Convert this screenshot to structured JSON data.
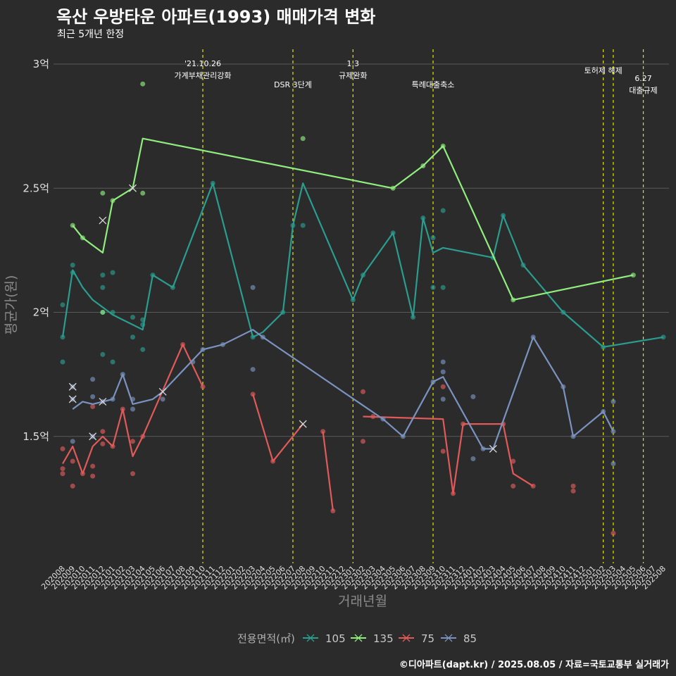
{
  "title": "옥산 우방타운 아파트(1993) 매매가격 변화",
  "subtitle": "최근 5개년 한정",
  "caption": "©디아파트(dapt.kr) / 2025.08.05 / 자료=국토교통부 실거래가",
  "chart_data": {
    "type": "line",
    "xlabel": "거래년월",
    "ylabel": "평균가(원)",
    "ylim": [
      1.0,
      3.05
    ],
    "yticks": [
      {
        "value": 1.5,
        "label": "1.5억"
      },
      {
        "value": 2.0,
        "label": "2억"
      },
      {
        "value": 2.5,
        "label": "2.5억"
      },
      {
        "value": 3.0,
        "label": "3억"
      }
    ],
    "categories": [
      "202008",
      "202009",
      "202010",
      "202011",
      "202012",
      "202101",
      "202102",
      "202103",
      "202104",
      "202105",
      "202106",
      "202107",
      "202108",
      "202109",
      "202110",
      "202111",
      "202112",
      "202201",
      "202202",
      "202203",
      "202204",
      "202205",
      "202206",
      "202207",
      "202208",
      "202209",
      "202210",
      "202211",
      "202212",
      "202301",
      "202302",
      "202303",
      "202304",
      "202305",
      "202306",
      "202307",
      "202308",
      "202309",
      "202310",
      "202311",
      "202312",
      "202401",
      "202402",
      "202403",
      "202404",
      "202405",
      "202406",
      "202407",
      "202408",
      "202409",
      "202410",
      "202411",
      "202412",
      "202501",
      "202502",
      "202503",
      "202504",
      "202505",
      "202506",
      "202507",
      "202508"
    ],
    "legend_title": "전용면적(㎡)",
    "legend_position": "bottom",
    "events": [
      {
        "x": 14,
        "label": [
          "'21.10.26",
          "가계부채관리강화"
        ]
      },
      {
        "x": 23,
        "label": [
          "DSR 3단계"
        ]
      },
      {
        "x": 29,
        "label": [
          "1.3",
          "규제완화"
        ]
      },
      {
        "x": 37,
        "label": [
          "특례대출축소"
        ]
      },
      {
        "x": 54,
        "label": [
          "토허제 해제"
        ]
      },
      {
        "x": 55,
        "label": []
      },
      {
        "x": 58,
        "label": [
          "6.27",
          "대출규제"
        ]
      }
    ],
    "series": [
      {
        "name": "105",
        "color": "#2a9d8f",
        "line": [
          [
            0,
            1.9
          ],
          [
            1,
            2.17
          ],
          [
            2,
            2.1
          ],
          [
            3,
            2.05
          ],
          [
            4,
            2.02
          ],
          [
            5,
            1.99
          ],
          [
            6,
            1.97
          ],
          [
            7,
            1.95
          ],
          [
            8,
            1.93
          ],
          [
            9,
            2.15
          ],
          [
            11,
            2.1
          ],
          [
            15,
            2.52
          ],
          [
            19,
            1.9
          ],
          [
            20,
            1.92
          ],
          [
            22,
            2.0
          ],
          [
            23,
            2.35
          ],
          [
            24,
            2.52
          ],
          [
            29,
            2.05
          ],
          [
            30,
            2.15
          ],
          [
            33,
            2.32
          ],
          [
            35,
            1.98
          ],
          [
            36,
            2.38
          ],
          [
            37,
            2.24
          ],
          [
            38,
            2.26
          ],
          [
            43,
            2.22
          ],
          [
            44,
            2.39
          ],
          [
            46,
            2.19
          ],
          [
            50,
            2.0
          ],
          [
            54,
            1.86
          ],
          [
            60,
            1.9
          ]
        ],
        "points": [
          [
            0,
            2.03
          ],
          [
            0,
            1.9
          ],
          [
            0,
            1.8
          ],
          [
            1,
            2.19
          ],
          [
            1,
            2.16
          ],
          [
            4,
            2.15
          ],
          [
            4,
            2.1
          ],
          [
            4,
            2.0
          ],
          [
            4,
            1.83
          ],
          [
            5,
            2.16
          ],
          [
            5,
            2.0
          ],
          [
            5,
            1.8
          ],
          [
            7,
            1.98
          ],
          [
            7,
            1.9
          ],
          [
            8,
            1.97
          ],
          [
            8,
            1.95
          ],
          [
            8,
            1.85
          ],
          [
            9,
            2.15
          ],
          [
            11,
            2.1
          ],
          [
            15,
            2.52
          ],
          [
            19,
            1.9
          ],
          [
            22,
            2.0
          ],
          [
            23,
            2.35
          ],
          [
            24,
            2.35
          ],
          [
            29,
            2.05
          ],
          [
            30,
            2.15
          ],
          [
            33,
            2.32
          ],
          [
            35,
            1.98
          ],
          [
            36,
            2.38
          ],
          [
            37,
            2.3
          ],
          [
            37,
            2.1
          ],
          [
            38,
            2.41
          ],
          [
            38,
            2.1
          ],
          [
            43,
            2.22
          ],
          [
            44,
            2.39
          ],
          [
            46,
            2.19
          ],
          [
            50,
            2.0
          ],
          [
            54,
            1.86
          ],
          [
            60,
            1.9
          ]
        ],
        "crosses": []
      },
      {
        "name": "135",
        "color": "#90ee7e",
        "line": [
          [
            1,
            2.35
          ],
          [
            2,
            2.3
          ],
          [
            4,
            2.24
          ],
          [
            5,
            2.45
          ],
          [
            7,
            2.5
          ],
          [
            8,
            2.7
          ],
          [
            33,
            2.5
          ],
          [
            36,
            2.59
          ],
          [
            38,
            2.67
          ],
          [
            45,
            2.05
          ],
          [
            57,
            2.15
          ]
        ],
        "points": [
          [
            1,
            2.35
          ],
          [
            2,
            2.3
          ],
          [
            4,
            2.48
          ],
          [
            4,
            2.0
          ],
          [
            5,
            2.45
          ],
          [
            8,
            2.92
          ],
          [
            8,
            2.48
          ],
          [
            24,
            2.7
          ],
          [
            33,
            2.5
          ],
          [
            36,
            2.59
          ],
          [
            38,
            2.67
          ],
          [
            45,
            2.05
          ],
          [
            57,
            2.15
          ]
        ],
        "crosses": [
          [
            7,
            2.5
          ]
        ]
      },
      {
        "name": "75",
        "color": "#e05a5a",
        "line": [
          [
            0,
            1.39
          ],
          [
            1,
            1.46
          ],
          [
            2,
            1.35
          ],
          [
            3,
            1.46
          ],
          [
            4,
            1.5
          ],
          [
            5,
            1.46
          ],
          [
            6,
            1.61
          ],
          [
            7,
            1.42
          ],
          [
            8,
            1.5
          ],
          [
            12,
            1.87
          ],
          [
            14,
            1.7
          ]
        ],
        "line2": [
          [
            19,
            1.67
          ],
          [
            21,
            1.4
          ],
          [
            24,
            1.55
          ]
        ],
        "line3": [
          [
            26,
            1.52
          ],
          [
            27,
            1.2
          ]
        ],
        "line4": [
          [
            30,
            1.58
          ],
          [
            38,
            1.57
          ],
          [
            39,
            1.27
          ],
          [
            40,
            1.55
          ],
          [
            44,
            1.55
          ],
          [
            45,
            1.35
          ],
          [
            47,
            1.3
          ]
        ],
        "points": [
          [
            0,
            1.45
          ],
          [
            0,
            1.37
          ],
          [
            0,
            1.35
          ],
          [
            1,
            1.4
          ],
          [
            1,
            1.3
          ],
          [
            2,
            1.35
          ],
          [
            3,
            1.38
          ],
          [
            3,
            1.34
          ],
          [
            3,
            1.62
          ],
          [
            4,
            1.52
          ],
          [
            4,
            1.47
          ],
          [
            5,
            1.46
          ],
          [
            6,
            1.61
          ],
          [
            7,
            1.48
          ],
          [
            7,
            1.35
          ],
          [
            8,
            1.5
          ],
          [
            12,
            1.87
          ],
          [
            14,
            1.7
          ],
          [
            19,
            1.67
          ],
          [
            21,
            1.4
          ],
          [
            26,
            1.52
          ],
          [
            27,
            1.2
          ],
          [
            30,
            1.68
          ],
          [
            30,
            1.48
          ],
          [
            31,
            1.58
          ],
          [
            38,
            1.7
          ],
          [
            38,
            1.44
          ],
          [
            39,
            1.27
          ],
          [
            40,
            1.55
          ],
          [
            44,
            1.55
          ],
          [
            45,
            1.4
          ],
          [
            45,
            1.3
          ],
          [
            47,
            1.3
          ],
          [
            51,
            1.3
          ],
          [
            51,
            1.28
          ],
          [
            55,
            1.11
          ]
        ],
        "crosses": [
          [
            24,
            1.55
          ]
        ]
      },
      {
        "name": "85",
        "color": "#7a93c0",
        "line": [
          [
            1,
            1.61
          ],
          [
            2,
            1.64
          ],
          [
            3,
            1.63
          ],
          [
            4,
            1.64
          ],
          [
            5,
            1.65
          ],
          [
            6,
            1.75
          ],
          [
            7,
            1.63
          ],
          [
            9,
            1.65
          ],
          [
            10,
            1.68
          ],
          [
            14,
            1.85
          ],
          [
            16,
            1.87
          ],
          [
            19,
            1.93
          ],
          [
            20,
            1.9
          ],
          [
            32,
            1.57
          ],
          [
            34,
            1.5
          ],
          [
            37,
            1.72
          ],
          [
            38,
            1.74
          ],
          [
            42,
            1.45
          ],
          [
            43,
            1.45
          ],
          [
            47,
            1.9
          ],
          [
            50,
            1.7
          ],
          [
            51,
            1.5
          ],
          [
            54,
            1.6
          ],
          [
            55,
            1.52
          ]
        ],
        "points": [
          [
            1,
            1.7
          ],
          [
            1,
            1.65
          ],
          [
            1,
            1.48
          ],
          [
            3,
            1.73
          ],
          [
            3,
            1.66
          ],
          [
            3,
            1.5
          ],
          [
            4,
            1.64
          ],
          [
            5,
            1.65
          ],
          [
            6,
            1.75
          ],
          [
            7,
            1.61
          ],
          [
            7,
            1.65
          ],
          [
            10,
            1.65
          ],
          [
            13,
            1.8
          ],
          [
            14,
            1.85
          ],
          [
            16,
            1.87
          ],
          [
            19,
            2.1
          ],
          [
            19,
            1.77
          ],
          [
            20,
            1.9
          ],
          [
            32,
            1.57
          ],
          [
            34,
            1.5
          ],
          [
            37,
            1.72
          ],
          [
            38,
            1.8
          ],
          [
            38,
            1.76
          ],
          [
            38,
            1.65
          ],
          [
            41,
            1.66
          ],
          [
            41,
            1.41
          ],
          [
            42,
            1.45
          ],
          [
            47,
            1.9
          ],
          [
            50,
            1.7
          ],
          [
            51,
            1.5
          ],
          [
            54,
            1.6
          ],
          [
            55,
            1.64
          ],
          [
            55,
            1.52
          ],
          [
            55,
            1.39
          ]
        ],
        "crosses": [
          [
            1,
            1.7
          ],
          [
            1,
            1.65
          ],
          [
            3,
            1.5
          ],
          [
            4,
            1.64
          ],
          [
            4,
            2.37
          ],
          [
            10,
            1.68
          ],
          [
            43,
            1.45
          ]
        ]
      }
    ]
  }
}
